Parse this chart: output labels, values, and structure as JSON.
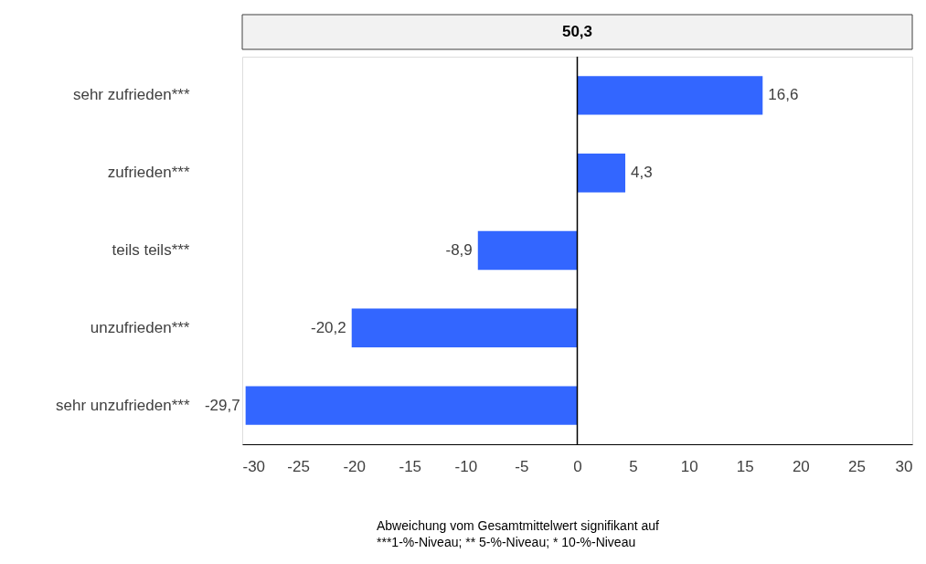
{
  "chart_data": {
    "type": "bar",
    "orientation": "horizontal",
    "title": "50,3",
    "categories": [
      "sehr zufrieden***",
      "zufrieden***",
      "teils teils***",
      "unzufrieden***",
      "sehr unzufrieden***"
    ],
    "series": [
      {
        "color": "#3366ff",
        "values": [
          16.6,
          4.3,
          -8.9,
          -20.2,
          -29.7
        ],
        "value_labels": [
          "16,6",
          "4,3",
          "-8,9",
          "-20,2",
          "-29,7"
        ]
      }
    ],
    "xlim": [
      -30,
      30
    ],
    "xticks": [
      -30,
      -25,
      -20,
      -15,
      -10,
      -5,
      0,
      5,
      10,
      15,
      20,
      25,
      30
    ],
    "ref_lines": [
      {
        "axis": "x",
        "value": 0,
        "color": "#000000"
      }
    ],
    "grid": false,
    "annotations": [
      "Abweichung vom Gesamtmittelwert signifikant auf",
      "***1-%-Niveau; ** 5-%-Niveau; * 10-%-Niveau"
    ]
  }
}
